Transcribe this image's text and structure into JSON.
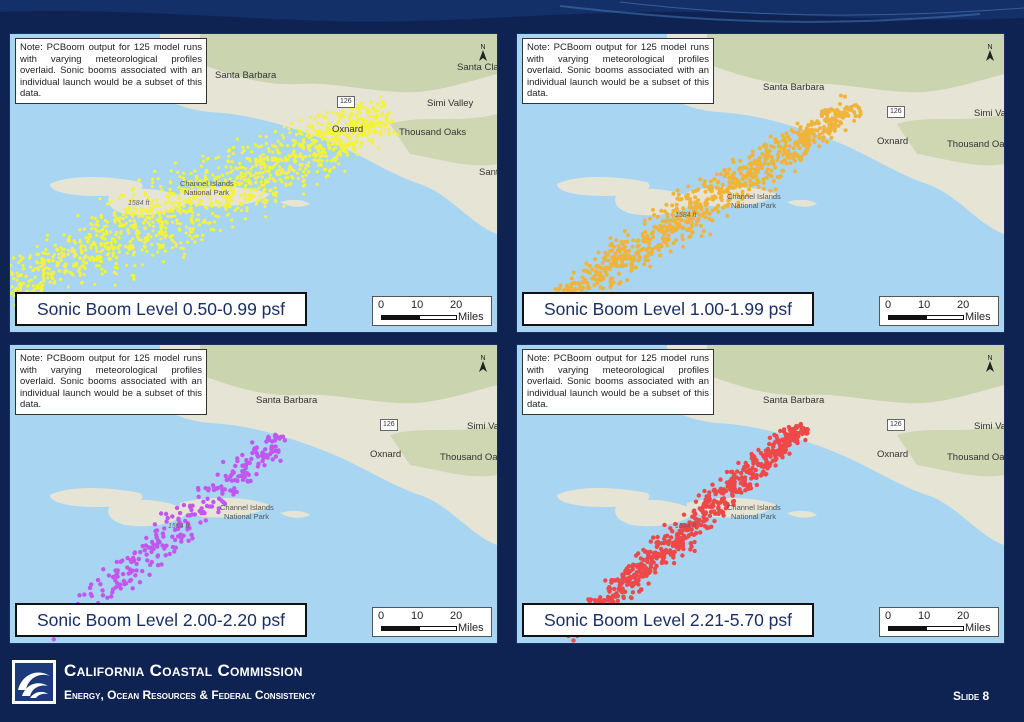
{
  "note_text": "Note: PCBoom output for 125 model runs with varying meteorological profiles overlaid. Sonic booms associated with an individual launch would be a subset of this data.",
  "panels": [
    {
      "level_label": "Sonic Boom Level 0.50-0.99 psf",
      "dot_color": "#f4f23a",
      "places": {
        "santa_barbara": "Santa Barbara",
        "simi_valley": "Simi Valley",
        "oxnard": "Oxnard",
        "thousand_oaks": "Thousand Oaks",
        "santa_clarita": "Santa Cla",
        "santa_monica": "Santa",
        "channel_islands": "Channel Islands",
        "national_park": "National Park",
        "elevation": "1584 ft",
        "highway": "126"
      }
    },
    {
      "level_label": "Sonic Boom Level 1.00-1.99 psf",
      "dot_color": "#f0b43c",
      "places": {
        "santa_barbara": "Santa Barbara",
        "simi_valley": "Simi Va",
        "oxnard": "Oxnard",
        "thousand_oaks": "Thousand Oa",
        "santa_clarita": "",
        "santa_monica": "",
        "channel_islands": "Channel Islands",
        "national_park": "National Park",
        "elevation": "1584 ft",
        "highway": "126"
      }
    },
    {
      "level_label": "Sonic Boom Level 2.00-2.20 psf",
      "dot_color": "#c257ef",
      "places": {
        "santa_barbara": "Santa Barbara",
        "simi_valley": "Simi Va",
        "oxnard": "Oxnard",
        "thousand_oaks": "Thousand Oal",
        "santa_clarita": "",
        "santa_monica": "",
        "channel_islands": "Channel Islands",
        "national_park": "National Park",
        "elevation": "1584 ft",
        "highway": "126"
      }
    },
    {
      "level_label": "Sonic Boom Level 2.21-5.70 psf",
      "dot_color": "#ee4848",
      "places": {
        "santa_barbara": "Santa Barbara",
        "simi_valley": "Simi Va",
        "oxnard": "Oxnard",
        "thousand_oaks": "Thousand Oa",
        "santa_clarita": "",
        "santa_monica": "",
        "channel_islands": "Channel Islands",
        "national_park": "National Park",
        "elevation": "1584 ft",
        "highway": "126"
      }
    }
  ],
  "scale": {
    "t0": "0",
    "t10": "10",
    "t20": "20",
    "unit": "Miles"
  },
  "footer": {
    "title": "California Coastal Commission",
    "subtitle": "Energy, Ocean Resources & Federal Consistency",
    "slide": "Slide 8"
  },
  "colors": {
    "background": "#0e2352",
    "ocean": "#a8d6f2",
    "land": "#e6e4d4",
    "mountains": "#c3d0a4"
  }
}
